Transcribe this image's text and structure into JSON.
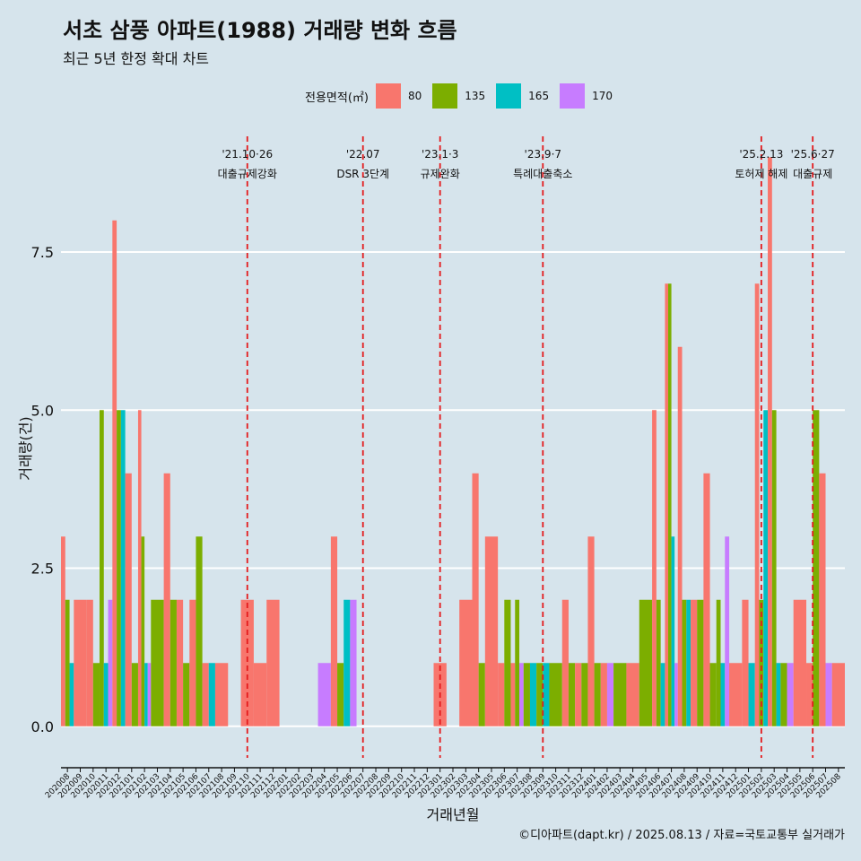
{
  "chart_data": {
    "type": "bar",
    "title": "서초 삼풍 아파트(1988) 거래량 변화 흐름",
    "subtitle": "최근 5년 한정 확대 차트",
    "xlabel": "거래년월",
    "ylabel": "거래량(건)",
    "caption": "©디아파트(dapt.kr) / 2025.08.13 / 자료=국토교통부 실거래가",
    "legend_title": "전용면적(㎡)",
    "legend_placement": "top",
    "ylim": [
      -0.5,
      9.5
    ],
    "y_ticks": [
      0,
      2.5,
      5,
      7.5
    ],
    "y_tick_labels": [
      "0.0",
      "2.5",
      "5.0",
      "7.5"
    ],
    "grid": true,
    "categories": [
      "202008",
      "202009",
      "202010",
      "202011",
      "202012",
      "202101",
      "202102",
      "202103",
      "202104",
      "202105",
      "202106",
      "202107",
      "202108",
      "202109",
      "202110",
      "202111",
      "202112",
      "202201",
      "202202",
      "202203",
      "202204",
      "202205",
      "202206",
      "202207",
      "202208",
      "202209",
      "202210",
      "202211",
      "202212",
      "202301",
      "202302",
      "202303",
      "202304",
      "202305",
      "202306",
      "202307",
      "202308",
      "202309",
      "202310",
      "202311",
      "202312",
      "202401",
      "202402",
      "202403",
      "202404",
      "202405",
      "202406",
      "202407",
      "202408",
      "202409",
      "202410",
      "202411",
      "202412",
      "202501",
      "202502",
      "202503",
      "202504",
      "202505",
      "202506",
      "202507",
      "202508"
    ],
    "series": [
      {
        "name": "80",
        "color": "#f8766d",
        "values": [
          3,
          2,
          2,
          null,
          8,
          4,
          5,
          null,
          4,
          2,
          2,
          1,
          1,
          null,
          2,
          1,
          2,
          null,
          null,
          null,
          null,
          3,
          null,
          null,
          null,
          null,
          null,
          null,
          null,
          1,
          null,
          2,
          4,
          3,
          1,
          1,
          null,
          null,
          null,
          2,
          1,
          3,
          1,
          null,
          1,
          null,
          5,
          7,
          6,
          2,
          4,
          null,
          1,
          2,
          7,
          9,
          null,
          2,
          1,
          4,
          1
        ]
      },
      {
        "name": "135",
        "color": "#7cae00",
        "values": [
          2,
          null,
          1,
          5,
          5,
          1,
          3,
          2,
          2,
          1,
          3,
          null,
          null,
          null,
          null,
          null,
          null,
          null,
          null,
          null,
          null,
          1,
          null,
          null,
          null,
          null,
          null,
          null,
          null,
          null,
          null,
          null,
          1,
          null,
          2,
          2,
          1,
          1,
          1,
          1,
          1,
          1,
          null,
          1,
          null,
          2,
          2,
          7,
          2,
          2,
          1,
          2,
          null,
          null,
          2,
          5,
          1,
          null,
          5,
          null,
          null
        ]
      },
      {
        "name": "165",
        "color": "#00bfc4",
        "values": [
          1,
          null,
          null,
          1,
          5,
          null,
          1,
          null,
          null,
          null,
          null,
          1,
          null,
          null,
          null,
          null,
          null,
          null,
          null,
          null,
          null,
          null,
          2,
          null,
          null,
          null,
          null,
          null,
          null,
          null,
          null,
          null,
          null,
          null,
          null,
          null,
          1,
          1,
          null,
          null,
          null,
          null,
          null,
          null,
          null,
          null,
          1,
          3,
          2,
          null,
          null,
          1,
          null,
          1,
          5,
          1,
          null,
          null,
          null,
          null,
          null
        ]
      },
      {
        "name": "170",
        "color": "#c77cff",
        "values": [
          null,
          null,
          null,
          2,
          null,
          null,
          1,
          null,
          null,
          null,
          null,
          null,
          null,
          null,
          null,
          null,
          null,
          null,
          null,
          null,
          1,
          null,
          2,
          null,
          null,
          null,
          null,
          null,
          null,
          null,
          null,
          null,
          null,
          null,
          null,
          1,
          null,
          null,
          null,
          null,
          null,
          null,
          1,
          null,
          null,
          null,
          null,
          1,
          null,
          null,
          null,
          3,
          null,
          null,
          null,
          null,
          1,
          null,
          null,
          1,
          null
        ]
      }
    ],
    "annotations": [
      {
        "x": "202110",
        "label_top": "'21.10·26",
        "label_bottom": "대출규제강화"
      },
      {
        "x": "202207",
        "label_top": "'22.07",
        "label_bottom": "DSR 3단계"
      },
      {
        "x": "202301",
        "label_top": "'23.1·3",
        "label_bottom": "규제완화"
      },
      {
        "x": "202309",
        "label_top": "'23.9·7",
        "label_bottom": "특례대출축소"
      },
      {
        "x": "202502",
        "label_top": "'25.2.13",
        "label_bottom": "토허제 해제"
      },
      {
        "x": "202506",
        "label_top": "'25.6·27",
        "label_bottom": "대출규제"
      }
    ],
    "annotation_color": "#e41a1c"
  }
}
